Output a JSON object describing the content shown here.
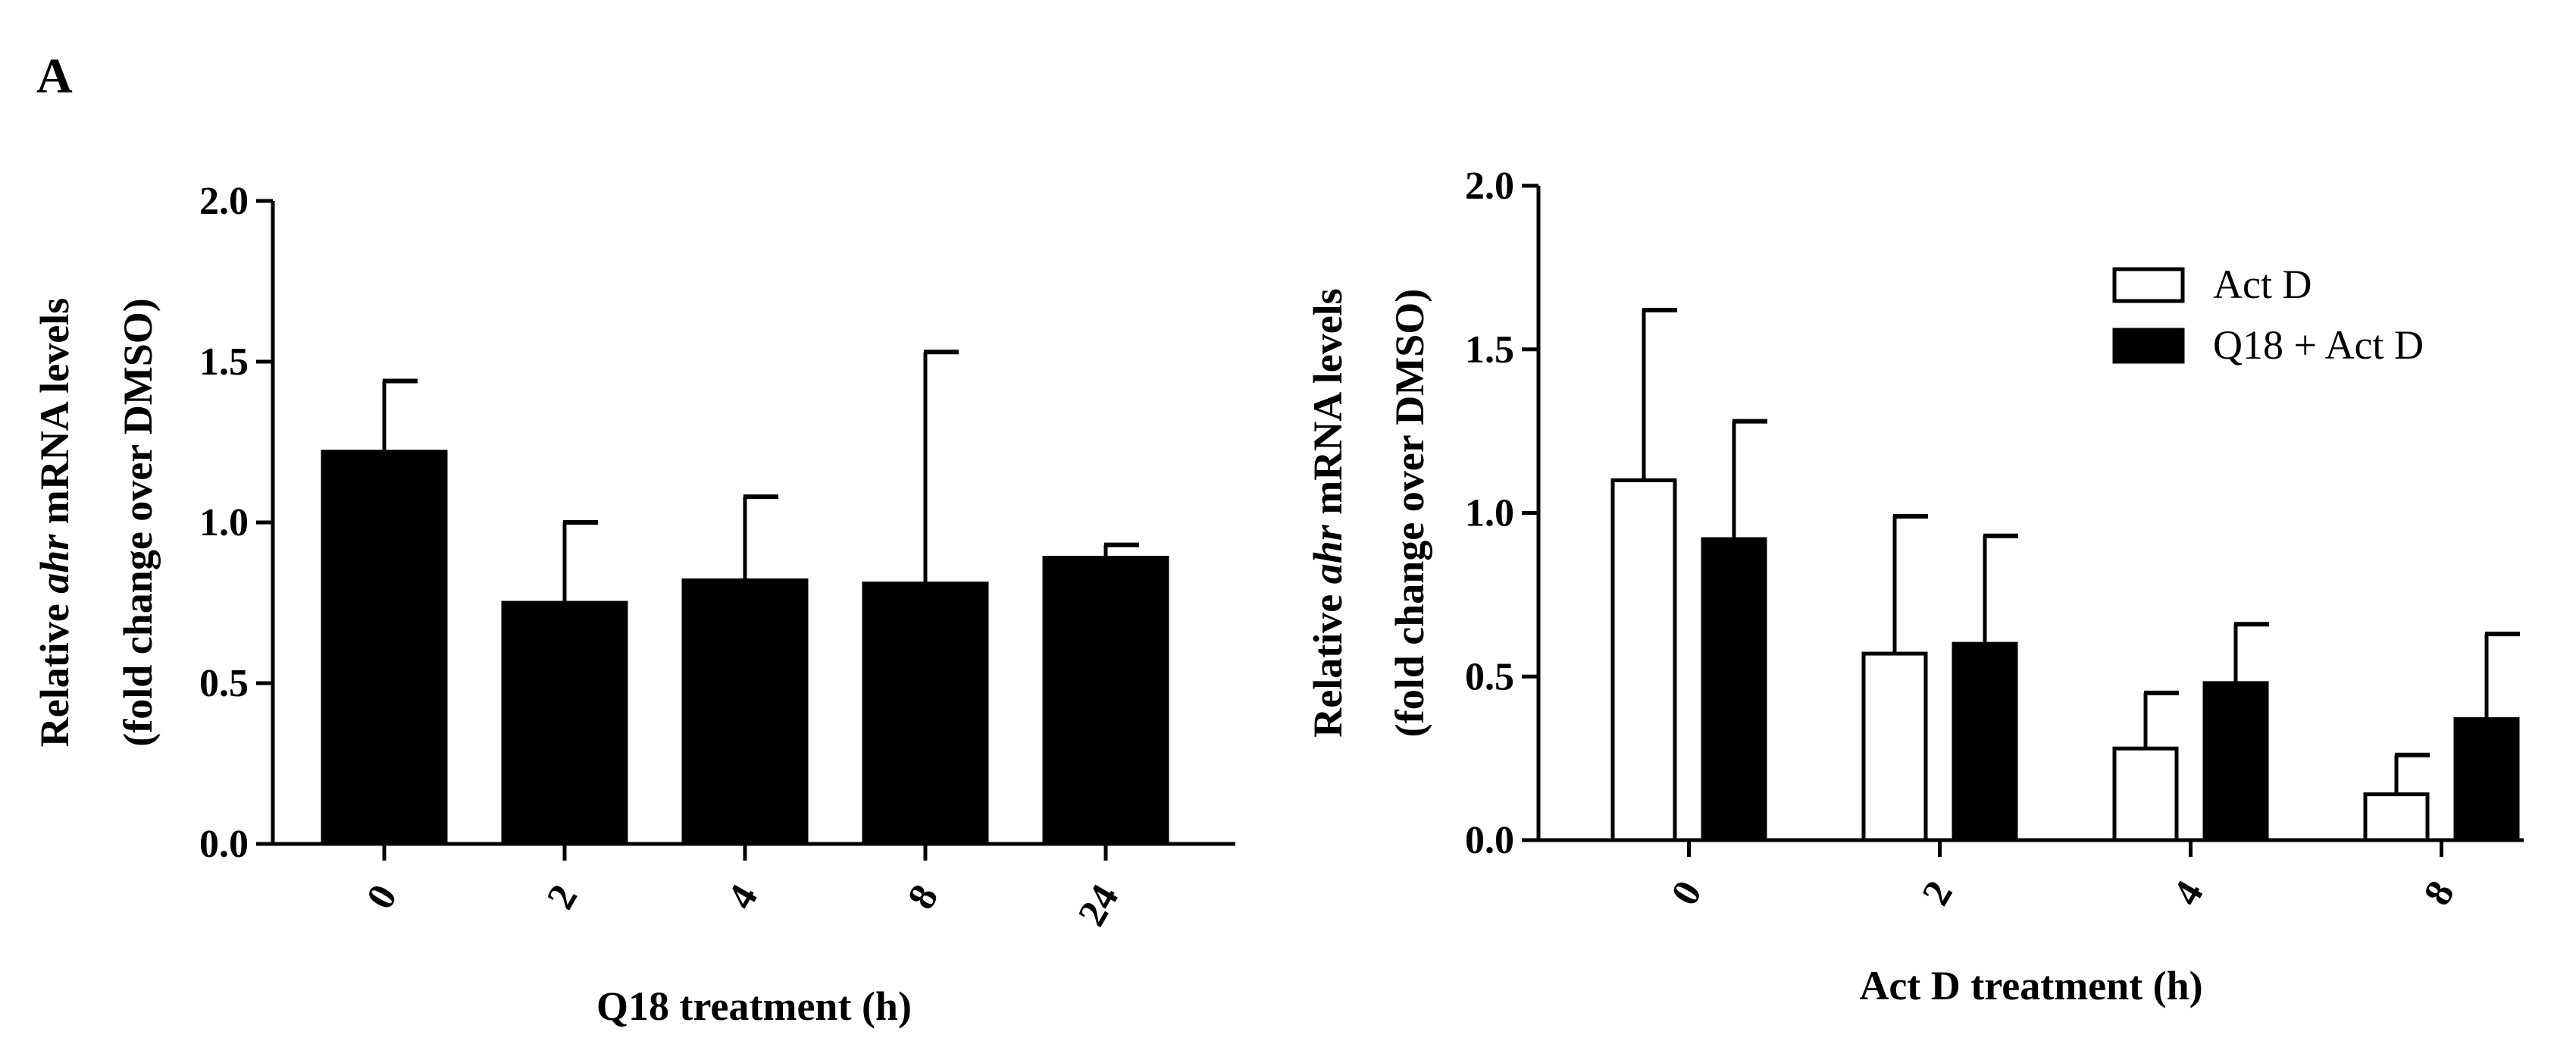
{
  "panel_label": "A",
  "chart_data": [
    {
      "type": "bar",
      "categories": [
        "0",
        "2",
        "4",
        "8",
        "24"
      ],
      "series": [
        {
          "values": [
            1.22,
            0.75,
            0.82,
            0.81,
            0.89
          ],
          "errors": [
            0.22,
            0.25,
            0.26,
            0.72,
            0.04
          ],
          "color": "#000000"
        }
      ],
      "ylabel_lines": [
        {
          "parts": [
            "Relative ",
            "ahr",
            " mRNA levels"
          ],
          "italic": [
            false,
            true,
            false
          ]
        },
        {
          "parts": [
            "(fold change over DMSO)"
          ],
          "italic": [
            false
          ]
        }
      ],
      "xlabel": "Q18 treatment (h)",
      "ylim": [
        0,
        2.0
      ],
      "yticks": [
        "0.0",
        "0.5",
        "1.0",
        "1.5",
        "2.0"
      ],
      "grid": false,
      "legend": false
    },
    {
      "type": "bar",
      "categories": [
        "0",
        "2",
        "4",
        "8"
      ],
      "series": [
        {
          "name": "Act D",
          "values": [
            1.1,
            0.57,
            0.28,
            0.14
          ],
          "errors": [
            0.52,
            0.42,
            0.17,
            0.12
          ],
          "fill": "#ffffff",
          "stroke": "#000000"
        },
        {
          "name": "Q18 + Act D",
          "values": [
            0.92,
            0.6,
            0.48,
            0.37
          ],
          "errors": [
            0.36,
            0.33,
            0.18,
            0.26
          ],
          "fill": "#000000",
          "stroke": "#000000"
        }
      ],
      "ylabel_lines": [
        {
          "parts": [
            "Relative ",
            "ahr",
            " mRNA levels"
          ],
          "italic": [
            false,
            true,
            false
          ]
        },
        {
          "parts": [
            "(fold change over DMSO)"
          ],
          "italic": [
            false
          ]
        }
      ],
      "xlabel": "Act D treatment (h)",
      "ylim": [
        0,
        2.0
      ],
      "yticks": [
        "0.0",
        "0.5",
        "1.0",
        "1.5",
        "2.0"
      ],
      "grid": false,
      "legend": "top-right"
    }
  ]
}
